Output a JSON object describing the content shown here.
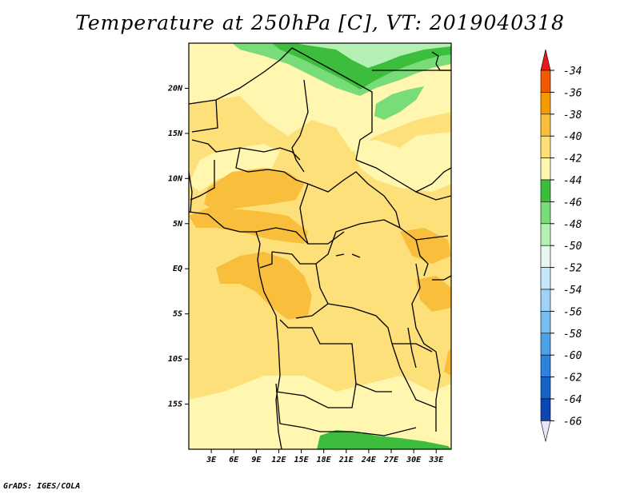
{
  "title": "Temperature at 250hPa [C], VT: 2019040318",
  "footer": "GrADS: IGES/COLA",
  "map": {
    "lat_labels": [
      "20N",
      "15N",
      "10N",
      "5N",
      "EQ",
      "5S",
      "10S",
      "15S"
    ],
    "lat_values": [
      20,
      15,
      10,
      5,
      0,
      -5,
      -10,
      -15
    ],
    "lon_labels": [
      "3E",
      "6E",
      "9E",
      "12E",
      "15E",
      "18E",
      "21E",
      "24E",
      "27E",
      "30E",
      "33E"
    ],
    "lon_values": [
      3,
      6,
      9,
      12,
      15,
      18,
      21,
      24,
      27,
      30,
      33
    ],
    "lon_range": [
      0,
      35
    ],
    "lat_range": [
      -20,
      25
    ]
  },
  "colorbar": {
    "labels": [
      "-34",
      "-36",
      "-38",
      "-40",
      "-42",
      "-44",
      "-46",
      "-48",
      "-50",
      "-52",
      "-54",
      "-56",
      "-58",
      "-60",
      "-62",
      "-64",
      "-66"
    ],
    "colors": [
      "#e41a1c",
      "#f05a00",
      "#f59a00",
      "#f8be3c",
      "#fde07a",
      "#fff6b0",
      "#3cbe3c",
      "#78dc78",
      "#b4f0b4",
      "#e6f8f0",
      "#c8e6fa",
      "#a0d2f5",
      "#78bcf0",
      "#4ea0e8",
      "#2c82dc",
      "#1464c8",
      "#0a46b4",
      "#0c1478",
      "#e6e6fa"
    ]
  }
}
